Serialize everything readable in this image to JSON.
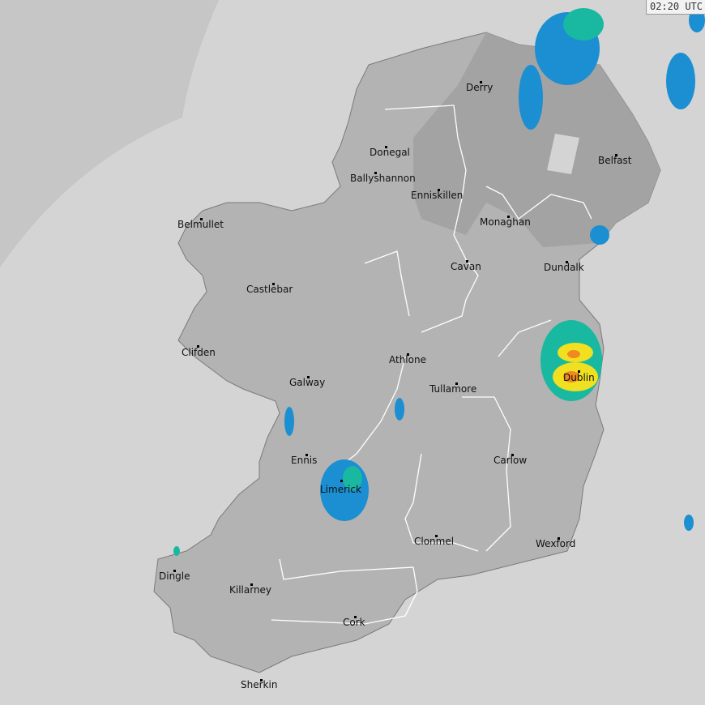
{
  "timestamp": "02:20 UTC",
  "colors": {
    "sea": "#d4d4d4",
    "out_of_range": "#c6c6c6",
    "land": "#b3b3b3",
    "northern_ireland": "#a3a3a3",
    "rivers": "#ffffff",
    "rain_light": "#1b8fd1",
    "rain_moderate": "#19b8a0",
    "rain_heavy": "#f0e020",
    "rain_intense": "#f08a20"
  },
  "cities": [
    {
      "name": "Derry"
    },
    {
      "name": "Donegal"
    },
    {
      "name": "Ballyshannon"
    },
    {
      "name": "Enniskillen"
    },
    {
      "name": "Belfast"
    },
    {
      "name": "Monaghan"
    },
    {
      "name": "Belmullet"
    },
    {
      "name": "Cavan"
    },
    {
      "name": "Dundalk"
    },
    {
      "name": "Castlebar"
    },
    {
      "name": "Clifden"
    },
    {
      "name": "Athlone"
    },
    {
      "name": "Tullamore"
    },
    {
      "name": "Galway"
    },
    {
      "name": "Dublin"
    },
    {
      "name": "Ennis"
    },
    {
      "name": "Carlow"
    },
    {
      "name": "Limerick"
    },
    {
      "name": "Clonmel"
    },
    {
      "name": "Wexford"
    },
    {
      "name": "Dingle"
    },
    {
      "name": "Killarney"
    },
    {
      "name": "Cork"
    },
    {
      "name": "Sherkin"
    }
  ]
}
